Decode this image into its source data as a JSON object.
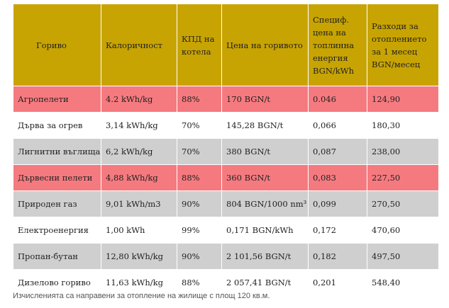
{
  "table": {
    "headers": [
      "Гориво",
      "Калоричност",
      "КПД на котела",
      "Цена на горивото",
      "Специф. цена на топлинна енергия BGN/kWh",
      "Разходи за отоплението за 1 месец BGN/месец"
    ],
    "rows": [
      {
        "style": "pink",
        "cells": [
          "Агропелети",
          "4.2 kWh/kg",
          "88%",
          "170 BGN/t",
          "0.046",
          "124,90"
        ]
      },
      {
        "style": "white",
        "cells": [
          "Дърва за огрев",
          "3,14 kWh/kg",
          "70%",
          "145,28 BGN/t",
          "0,066",
          "180,30"
        ]
      },
      {
        "style": "gray",
        "cells": [
          "Лигнитни въглища",
          "6,2 kWh/kg",
          "70%",
          " 380 BGN/t",
          "0,087",
          "238,00"
        ]
      },
      {
        "style": "pink",
        "cells": [
          "Дървесни пелети",
          "4,88 kWh/kg",
          "88%",
          " 360 BGN/t",
          "0,083",
          "227,50"
        ]
      },
      {
        "style": "gray",
        "cells": [
          "Природен газ",
          "9,01 kWh/m3",
          "90%",
          "804 BGN/1000 nm³",
          "0,099",
          "270,50"
        ]
      },
      {
        "style": "white",
        "cells": [
          "Електроенергия",
          "1,00 kWh",
          "99%",
          "0,171 BGN/kWh",
          "0,172",
          "470,60"
        ]
      },
      {
        "style": "gray",
        "cells": [
          "Пропан-бутан",
          "12,80 kWh/kg",
          "90%",
          " 2 101,56 BGN/t",
          "0,182",
          "497,50"
        ]
      },
      {
        "style": "white",
        "cells": [
          "Дизелово гориво",
          "11,63 kWh/kg",
          "88%",
          " 2 057,41 BGN/t",
          "0,201",
          "548,40"
        ]
      }
    ]
  },
  "footnote": "Изчисленията са направени за отопление на жилище с площ 120 кв.м.",
  "colors": {
    "header": "#c8a402",
    "pink": "#f57a7f",
    "gray": "#cfcfcf",
    "white": "#ffffff"
  }
}
